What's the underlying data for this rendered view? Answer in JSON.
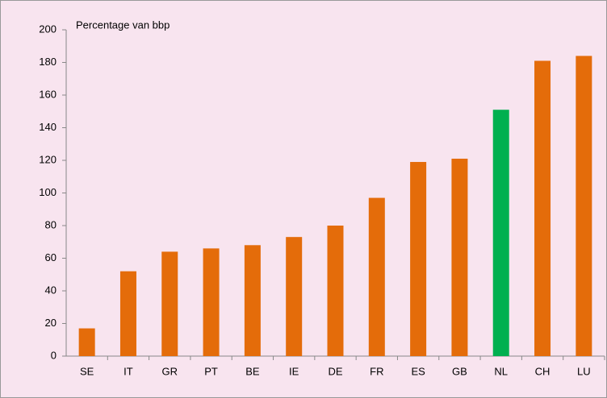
{
  "chart_data": {
    "type": "bar",
    "y_axis_label": "Percentage van bbp",
    "categories": [
      "SE",
      "IT",
      "GR",
      "PT",
      "BE",
      "IE",
      "DE",
      "FR",
      "ES",
      "GB",
      "NL",
      "CH",
      "LU"
    ],
    "values": [
      17,
      52,
      64,
      66,
      68,
      73,
      80,
      97,
      119,
      121,
      151,
      181,
      184
    ],
    "colors": [
      "#e46c0a",
      "#e46c0a",
      "#e46c0a",
      "#e46c0a",
      "#e46c0a",
      "#e46c0a",
      "#e46c0a",
      "#e46c0a",
      "#e46c0a",
      "#e46c0a",
      "#00b050",
      "#e46c0a",
      "#e46c0a"
    ],
    "ylim": [
      0,
      200
    ],
    "yticks": [
      0,
      20,
      40,
      60,
      80,
      100,
      120,
      140,
      160,
      180,
      200
    ],
    "grid": false
  }
}
